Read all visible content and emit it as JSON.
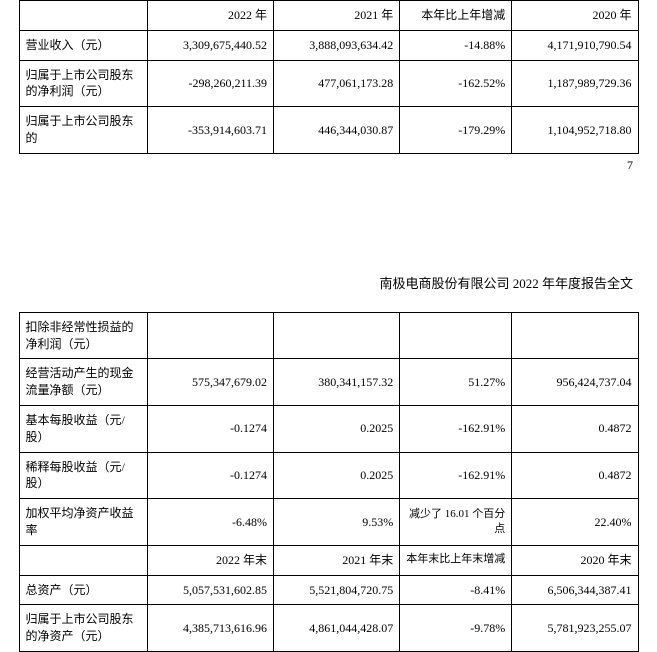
{
  "page_number": "7",
  "doc_title": "南极电商股份有限公司 2022 年年度报告全文",
  "table1": {
    "headers": [
      "",
      "2022 年",
      "2021 年",
      "本年比上年增减",
      "2020 年"
    ],
    "rows": [
      {
        "label": "营业收入（元）",
        "c2022": "3,309,675,440.52",
        "c2021": "3,888,093,634.42",
        "change": "-14.88%",
        "c2020": "4,171,910,790.54"
      },
      {
        "label": "归属于上市公司股东的净利润（元）",
        "c2022": "-298,260,211.39",
        "c2021": "477,061,173.28",
        "change": "-162.52%",
        "c2020": "1,187,989,729.36"
      },
      {
        "label": "归属于上市公司股东的",
        "c2022": "-353,914,603.71",
        "c2021": "446,344,030.87",
        "change": "-179.29%",
        "c2020": "1,104,952,718.80"
      }
    ]
  },
  "table2": {
    "top_rows": [
      {
        "label": "扣除非经常性损益的净利润（元）",
        "c2022": "",
        "c2021": "",
        "change": "",
        "c2020": ""
      },
      {
        "label": "经营活动产生的现金流量净额（元）",
        "c2022": "575,347,679.02",
        "c2021": "380,341,157.32",
        "change": "51.27%",
        "c2020": "956,424,737.04"
      },
      {
        "label": "基本每股收益（元/股）",
        "c2022": "-0.1274",
        "c2021": "0.2025",
        "change": "-162.91%",
        "c2020": "0.4872"
      },
      {
        "label": "稀释每股收益（元/股）",
        "c2022": "-0.1274",
        "c2021": "0.2025",
        "change": "-162.91%",
        "c2020": "0.4872"
      },
      {
        "label": "加权平均净资产收益率",
        "c2022": "-6.48%",
        "c2021": "9.53%",
        "change": "减少了 16.01 个百分点",
        "c2020": "22.40%"
      }
    ],
    "sub_headers": [
      "",
      "2022 年末",
      "2021 年末",
      "本年末比上年末增减",
      "2020 年末"
    ],
    "bottom_rows": [
      {
        "label": "总资产（元）",
        "c2022": "5,057,531,602.85",
        "c2021": "5,521,804,720.75",
        "change": "-8.41%",
        "c2020": "6,506,344,387.41"
      },
      {
        "label": "归属于上市公司股东的净资产（元）",
        "c2022": "4,385,713,616.96",
        "c2021": "4,861,044,428.07",
        "change": "-9.78%",
        "c2020": "5,781,923,255.07"
      }
    ]
  }
}
